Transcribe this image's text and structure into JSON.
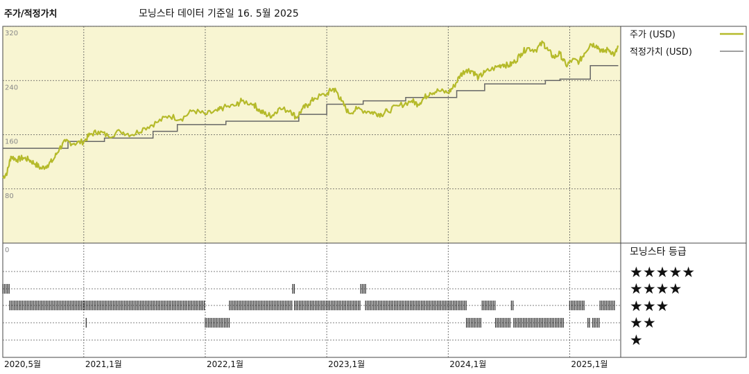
{
  "header": {
    "title": "주가/적정가치",
    "subtitle": "모닝스타 데이터 기준일 16. 5월 2025"
  },
  "legend": {
    "price_label": "주가 (USD)",
    "fair_label": "적정가치 (USD)",
    "rating_title": "모닝스타 등급",
    "stars": [
      "★★★★★",
      "★★★★",
      "★★★",
      "★★",
      "★"
    ]
  },
  "colors": {
    "price": "#b5ba2a",
    "fair": "#666666",
    "top_panel_bg": "#f8f5d2",
    "rating_bar": "#333333"
  },
  "chart_data": {
    "type": "line",
    "y_ticks": [
      "320",
      "240",
      "160",
      "80",
      "0"
    ],
    "ylim": [
      0,
      320
    ],
    "x_ticks": [
      {
        "label": "2020,5월",
        "t": 2020.333
      },
      {
        "label": "2021,1월",
        "t": 2021.0
      },
      {
        "label": "2022,1월",
        "t": 2022.0
      },
      {
        "label": "2023,1월",
        "t": 2023.0
      },
      {
        "label": "2024,1월",
        "t": 2024.0
      },
      {
        "label": "2025,1월",
        "t": 2025.0
      }
    ],
    "x_range": [
      2020.333,
      2025.42
    ],
    "grid": true,
    "series": [
      {
        "name": "주가 (USD)",
        "points": [
          [
            2020.333,
            96
          ],
          [
            2020.37,
            105
          ],
          [
            2020.4,
            128
          ],
          [
            2020.45,
            123
          ],
          [
            2020.5,
            126
          ],
          [
            2020.55,
            123
          ],
          [
            2020.6,
            117
          ],
          [
            2020.65,
            110
          ],
          [
            2020.7,
            115
          ],
          [
            2020.75,
            123
          ],
          [
            2020.8,
            140
          ],
          [
            2020.85,
            150
          ],
          [
            2020.92,
            147
          ],
          [
            2021.0,
            150
          ],
          [
            2021.05,
            160
          ],
          [
            2021.12,
            165
          ],
          [
            2021.2,
            158
          ],
          [
            2021.3,
            165
          ],
          [
            2021.4,
            160
          ],
          [
            2021.5,
            170
          ],
          [
            2021.6,
            178
          ],
          [
            2021.7,
            188
          ],
          [
            2021.8,
            183
          ],
          [
            2021.9,
            196
          ],
          [
            2022.0,
            190
          ],
          [
            2022.1,
            195
          ],
          [
            2022.15,
            200
          ],
          [
            2022.25,
            203
          ],
          [
            2022.3,
            210
          ],
          [
            2022.4,
            205
          ],
          [
            2022.45,
            195
          ],
          [
            2022.5,
            190
          ],
          [
            2022.55,
            188
          ],
          [
            2022.6,
            198
          ],
          [
            2022.7,
            196
          ],
          [
            2022.75,
            185
          ],
          [
            2022.8,
            198
          ],
          [
            2022.85,
            205
          ],
          [
            2022.9,
            214
          ],
          [
            2023.0,
            220
          ],
          [
            2023.05,
            228
          ],
          [
            2023.08,
            224
          ],
          [
            2023.12,
            210
          ],
          [
            2023.18,
            192
          ],
          [
            2023.25,
            198
          ],
          [
            2023.35,
            194
          ],
          [
            2023.4,
            192
          ],
          [
            2023.45,
            190
          ],
          [
            2023.5,
            195
          ],
          [
            2023.6,
            203
          ],
          [
            2023.7,
            210
          ],
          [
            2023.75,
            205
          ],
          [
            2023.8,
            214
          ],
          [
            2023.85,
            222
          ],
          [
            2023.92,
            225
          ],
          [
            2024.0,
            222
          ],
          [
            2024.05,
            232
          ],
          [
            2024.1,
            248
          ],
          [
            2024.15,
            256
          ],
          [
            2024.2,
            254
          ],
          [
            2024.25,
            244
          ],
          [
            2024.3,
            252
          ],
          [
            2024.4,
            260
          ],
          [
            2024.45,
            264
          ],
          [
            2024.5,
            262
          ],
          [
            2024.55,
            268
          ],
          [
            2024.6,
            280
          ],
          [
            2024.65,
            288
          ],
          [
            2024.72,
            285
          ],
          [
            2024.78,
            296
          ],
          [
            2024.82,
            285
          ],
          [
            2024.87,
            274
          ],
          [
            2024.92,
            280
          ],
          [
            2024.97,
            262
          ],
          [
            2025.02,
            270
          ],
          [
            2025.08,
            268
          ],
          [
            2025.12,
            280
          ],
          [
            2025.17,
            294
          ],
          [
            2025.22,
            292
          ],
          [
            2025.27,
            282
          ],
          [
            2025.32,
            286
          ],
          [
            2025.37,
            278
          ],
          [
            2025.4,
            290
          ]
        ]
      },
      {
        "name": "적정가치 (USD)",
        "steps": [
          [
            2020.333,
            140
          ],
          [
            2020.87,
            150
          ],
          [
            2021.17,
            155
          ],
          [
            2021.57,
            165
          ],
          [
            2021.77,
            175
          ],
          [
            2022.17,
            180
          ],
          [
            2022.77,
            190
          ],
          [
            2023.0,
            205
          ],
          [
            2023.3,
            210
          ],
          [
            2023.65,
            215
          ],
          [
            2024.07,
            225
          ],
          [
            2024.3,
            235
          ],
          [
            2024.8,
            240
          ],
          [
            2024.92,
            242
          ],
          [
            2025.17,
            262
          ],
          [
            2025.4,
            262
          ]
        ]
      }
    ],
    "ratings": {
      "rows": [
        "★★★★★",
        "★★★★",
        "★★★",
        "★★",
        "★"
      ],
      "periods": [
        {
          "stars": 4,
          "ranges": [
            [
              2020.333,
              2020.39
            ],
            [
              2022.72,
              2022.735
            ],
            [
              2023.28,
              2023.32
            ]
          ]
        },
        {
          "stars": 3,
          "ranges": [
            [
              2020.39,
              2022.0
            ],
            [
              2022.2,
              2022.72
            ],
            [
              2022.735,
              2023.28
            ],
            [
              2023.32,
              2024.15
            ],
            [
              2024.28,
              2024.39
            ],
            [
              2024.52,
              2024.54
            ],
            [
              2025.0,
              2025.12
            ],
            [
              2025.25,
              2025.38
            ]
          ]
        },
        {
          "stars": 2,
          "ranges": [
            [
              2021.02,
              2021.025
            ],
            [
              2022.0,
              2022.2
            ],
            [
              2024.15,
              2024.28
            ],
            [
              2024.39,
              2024.52
            ],
            [
              2024.54,
              2024.95
            ],
            [
              2025.15,
              2025.17
            ],
            [
              2025.19,
              2025.25
            ]
          ]
        }
      ]
    }
  }
}
